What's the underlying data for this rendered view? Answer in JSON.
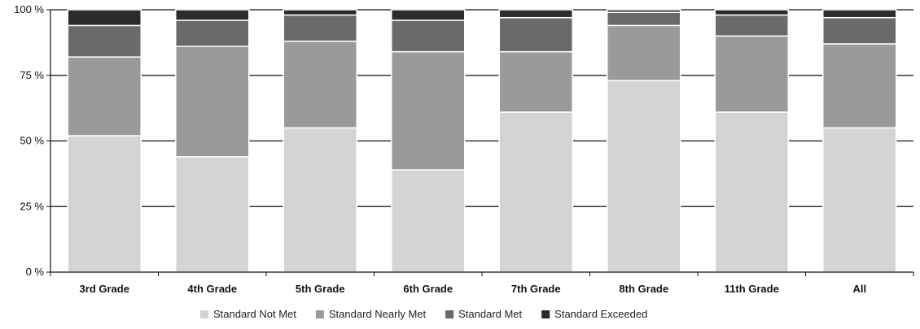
{
  "chart_data": {
    "type": "bar",
    "stacked": true,
    "title": "",
    "xlabel": "",
    "ylabel": "",
    "ylim": [
      0,
      100
    ],
    "ytick_values": [
      0,
      25,
      50,
      75,
      100
    ],
    "ytick_labels": [
      "0 %",
      "25 %",
      "50 %",
      "75 %",
      "100 %"
    ],
    "grid": true,
    "legend_position": "bottom",
    "categories": [
      "3rd Grade",
      "4th Grade",
      "5th Grade",
      "6th Grade",
      "7th Grade",
      "8th Grade",
      "11th Grade",
      "All"
    ],
    "series": [
      {
        "name": "Standard Not Met",
        "color": "#d4d4d4",
        "values": [
          52,
          44,
          55,
          39,
          61,
          73,
          61,
          55
        ]
      },
      {
        "name": "Standard Nearly Met",
        "color": "#9a9a9a",
        "values": [
          30,
          42,
          33,
          45,
          23,
          21,
          29,
          32
        ]
      },
      {
        "name": "Standard Met",
        "color": "#6a6a6a",
        "values": [
          12,
          10,
          10,
          12,
          13,
          5,
          8,
          10
        ]
      },
      {
        "name": "Standard Exceeded",
        "color": "#2b2b2b",
        "values": [
          6,
          4,
          2,
          4,
          3,
          1,
          2,
          3
        ]
      }
    ]
  }
}
